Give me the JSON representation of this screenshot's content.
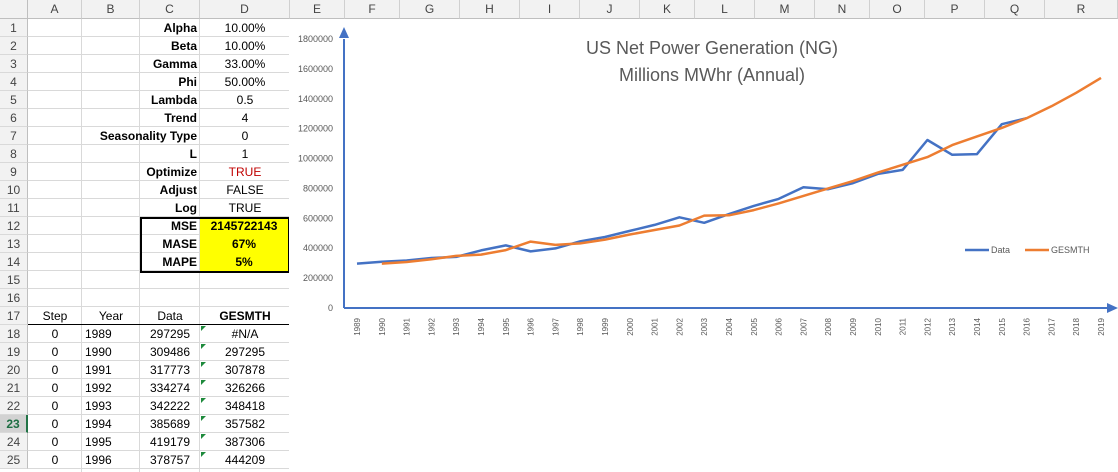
{
  "columns": [
    "A",
    "B",
    "C",
    "D",
    "E",
    "F",
    "G",
    "H",
    "I",
    "J",
    "K",
    "L",
    "M",
    "N",
    "O",
    "P",
    "Q",
    "R"
  ],
  "rows": [
    "1",
    "2",
    "3",
    "4",
    "5",
    "6",
    "7",
    "8",
    "9",
    "10",
    "11",
    "12",
    "13",
    "14",
    "15",
    "16",
    "17",
    "18",
    "19",
    "20",
    "21",
    "22",
    "23",
    "24",
    "25"
  ],
  "selected_row": "23",
  "params": [
    {
      "label": "Alpha",
      "value": "10.00%"
    },
    {
      "label": "Beta",
      "value": "10.00%"
    },
    {
      "label": "Gamma",
      "value": "33.00%"
    },
    {
      "label": "Phi",
      "value": "50.00%"
    },
    {
      "label": "Lambda",
      "value": "0.5"
    },
    {
      "label": "Trend",
      "value": "4"
    },
    {
      "label": "Seasonality Type",
      "value": "0"
    },
    {
      "label": "L",
      "value": "1"
    },
    {
      "label": "Optimize",
      "value": "TRUE"
    },
    {
      "label": "Adjust",
      "value": "FALSE"
    },
    {
      "label": "Log",
      "value": "TRUE"
    }
  ],
  "metrics": [
    {
      "label": "MSE",
      "value": "2145722143"
    },
    {
      "label": "MASE",
      "value": "67%"
    },
    {
      "label": "MAPE",
      "value": "5%"
    }
  ],
  "table": {
    "headers": [
      "Step",
      "Year",
      "Data",
      "GESMTH"
    ],
    "rows": [
      [
        "0",
        "1989",
        "297295",
        "#N/A"
      ],
      [
        "0",
        "1990",
        "309486",
        "297295"
      ],
      [
        "0",
        "1991",
        "317773",
        "307878"
      ],
      [
        "0",
        "1992",
        "334274",
        "326266"
      ],
      [
        "0",
        "1993",
        "342222",
        "348418"
      ],
      [
        "0",
        "1994",
        "385689",
        "357582"
      ],
      [
        "0",
        "1995",
        "419179",
        "387306"
      ],
      [
        "0",
        "1996",
        "378757",
        "444209"
      ]
    ]
  },
  "colors": {
    "data": "#4472c4",
    "gesmth": "#ed7d31",
    "axis": "#4472c4",
    "highlight": "#ffff00",
    "comment": "#1e8a3c"
  },
  "chart_data": {
    "type": "line",
    "title": "US Net Power Generation (NG)",
    "subtitle": "Millions MWhr (Annual)",
    "x": [
      "1989",
      "1990",
      "1991",
      "1992",
      "1993",
      "1994",
      "1995",
      "1996",
      "1997",
      "1998",
      "1999",
      "2000",
      "2001",
      "2002",
      "2003",
      "2004",
      "2005",
      "2006",
      "2007",
      "2008",
      "2009",
      "2010",
      "2011",
      "2012",
      "2013",
      "2014",
      "2015",
      "2016",
      "2017",
      "2018",
      "2019"
    ],
    "ylim": [
      0,
      1800000
    ],
    "yticks": [
      "0",
      "200000",
      "400000",
      "600000",
      "800000",
      "1000000",
      "1200000",
      "1400000",
      "1600000",
      "1800000"
    ],
    "legend_position": "right",
    "series": [
      {
        "name": "Data",
        "values": [
          297295,
          309486,
          317773,
          334274,
          342222,
          385689,
          419179,
          378757,
          399000,
          446000,
          475000,
          516000,
          556000,
          607000,
          570000,
          628000,
          683000,
          730000,
          808000,
          795000,
          836000,
          897000,
          924000,
          1124000,
          1025000,
          1030000,
          1230000,
          1270000,
          null,
          null,
          null
        ]
      },
      {
        "name": "GESMTH",
        "values": [
          null,
          297295,
          307878,
          326266,
          348418,
          357582,
          387306,
          444209,
          422000,
          432000,
          458000,
          492000,
          522000,
          552000,
          618000,
          620000,
          655000,
          700000,
          750000,
          800000,
          849000,
          906000,
          958000,
          1010000,
          1090000,
          1148000,
          1205000,
          1270000,
          1350000,
          1440000,
          1540000
        ]
      }
    ]
  }
}
